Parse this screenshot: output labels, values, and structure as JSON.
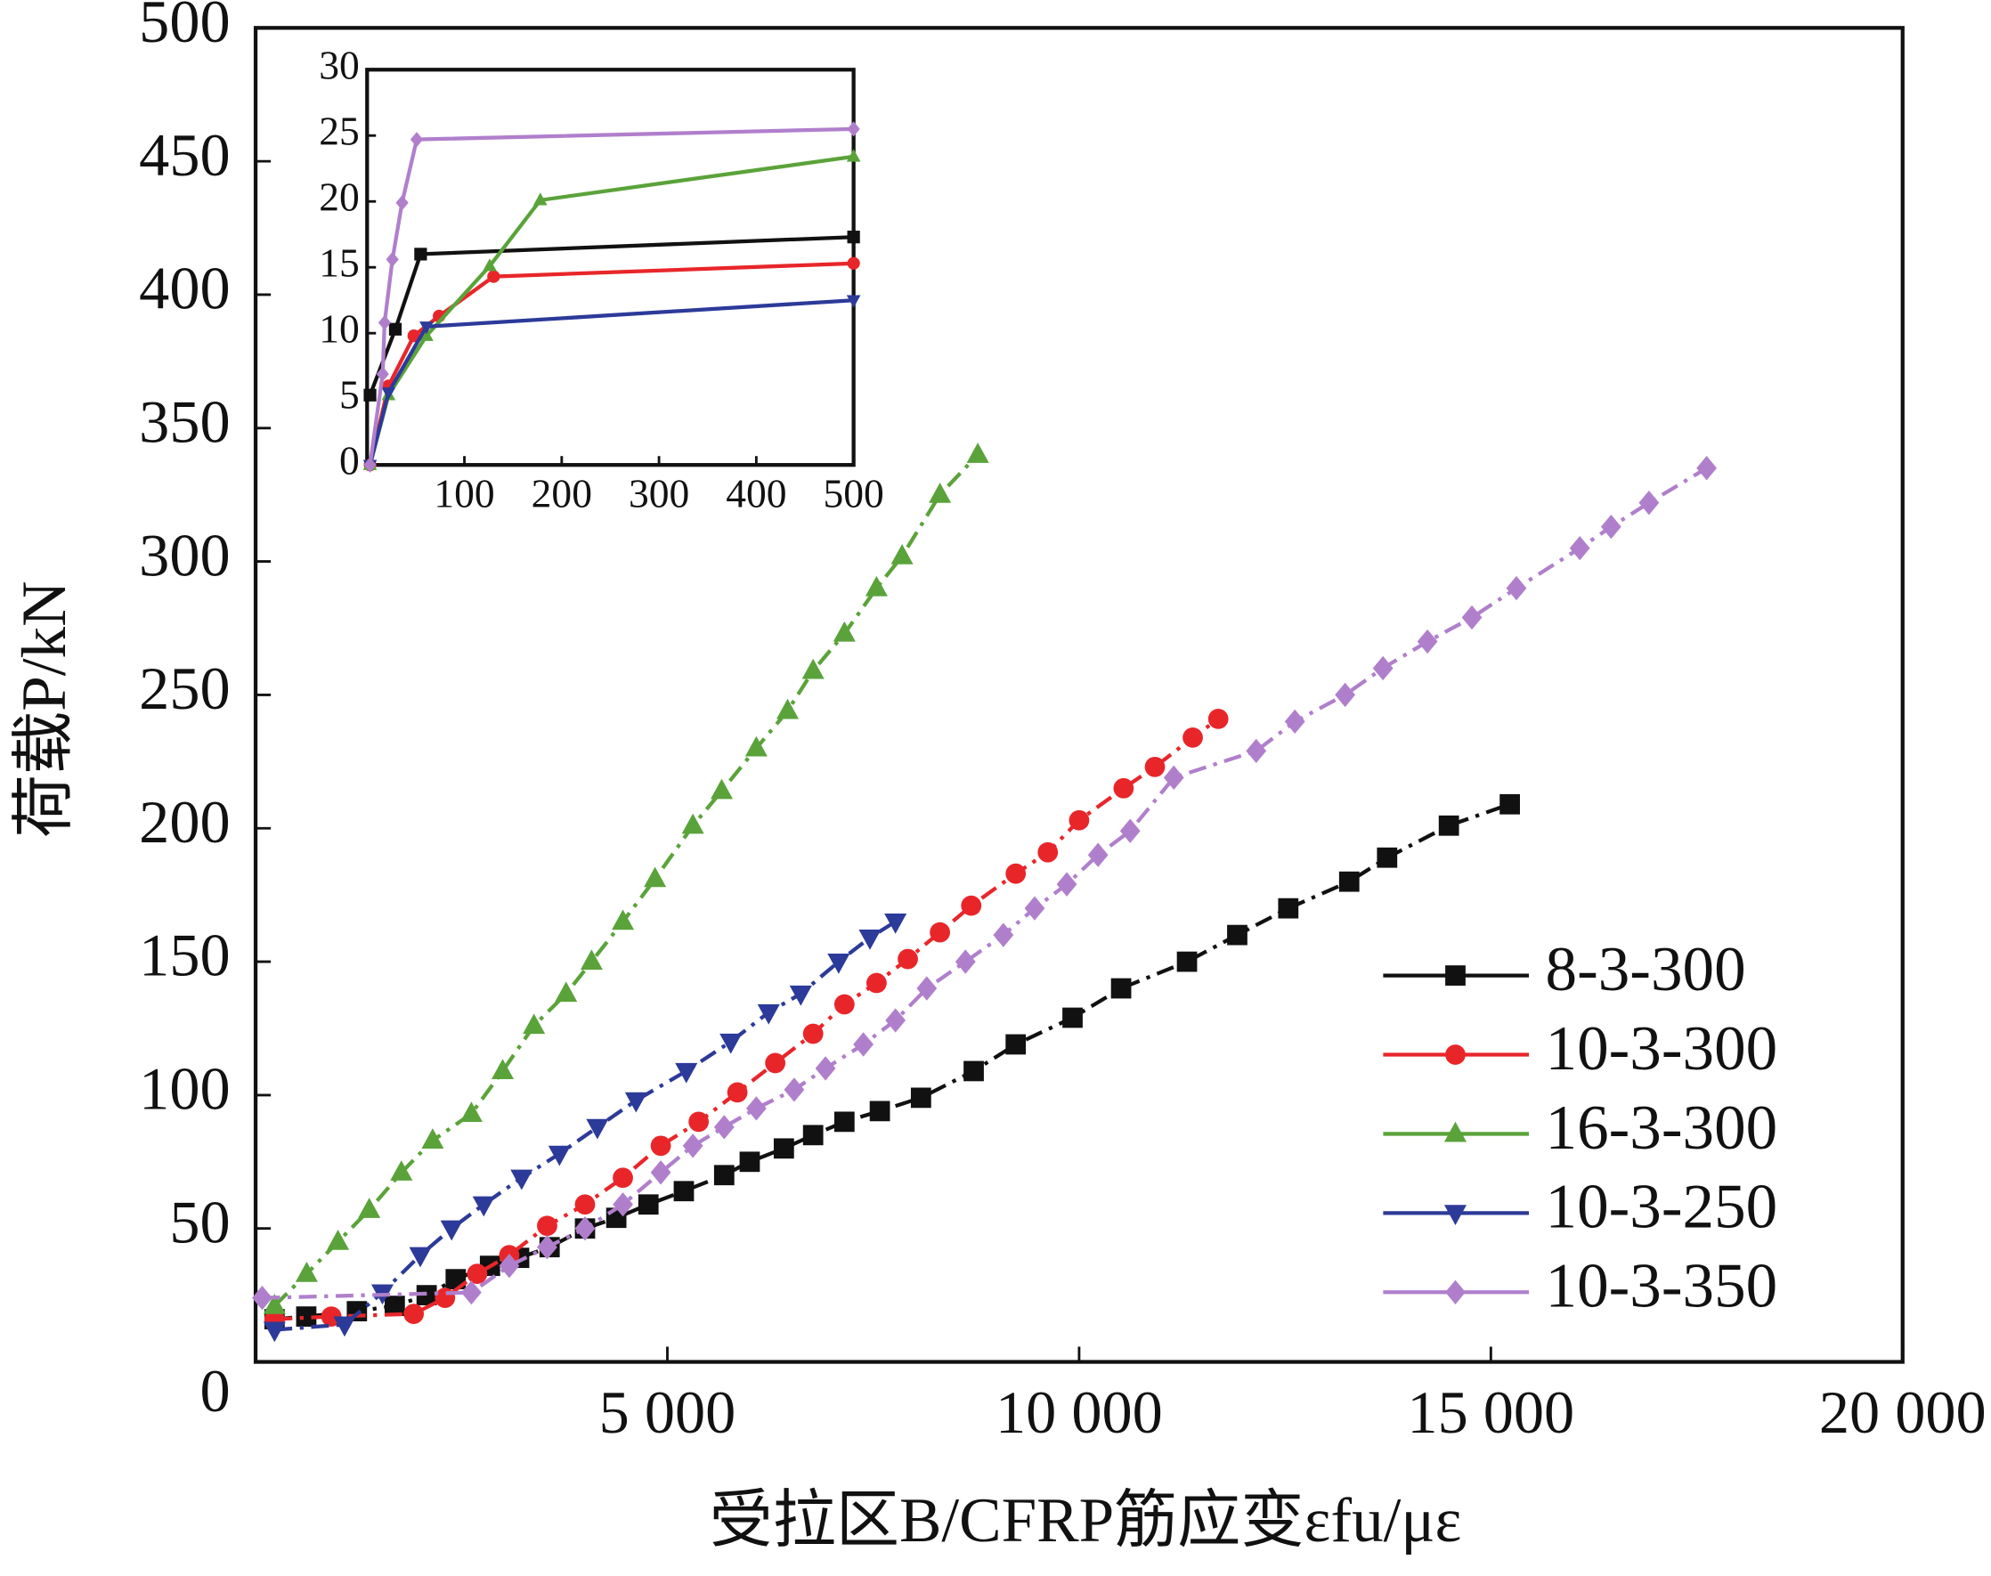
{
  "chart_data": [
    {
      "type": "line",
      "xlabel": "受拉区B/CFRP筋应变εfu/με",
      "ylabel": "荷载P/kN",
      "xlim": [
        0,
        20000
      ],
      "xticks": [
        {
          "value": 5000,
          "label": "5 000"
        },
        {
          "value": 10000,
          "label": "10 000"
        },
        {
          "value": 15000,
          "label": "15 000"
        },
        {
          "value": 20000,
          "label": "20 000"
        }
      ],
      "ylim": [
        0,
        500
      ],
      "yticks": [
        0,
        50,
        100,
        150,
        200,
        250,
        300,
        350,
        400,
        450,
        500
      ],
      "grid": false,
      "legend": "lower right",
      "series": [
        {
          "name": "8-3-300",
          "color": "#111111",
          "marker": "square",
          "x": [
            230,
            615,
            1230,
            1690,
            2077,
            2430,
            2846,
            3200,
            3570,
            4000,
            4380,
            4770,
            5200,
            5690,
            6000,
            6415,
            6770,
            7150,
            7580,
            8080,
            8720,
            9230,
            9920,
            10510,
            11310,
            11920,
            12540,
            13280,
            13740,
            14490,
            15230
          ],
          "values": [
            16,
            17,
            19,
            21,
            25,
            31,
            36,
            39,
            43,
            50,
            54,
            59,
            64,
            70,
            75,
            80,
            85,
            90,
            94,
            99,
            109,
            119,
            129,
            140,
            150,
            160,
            170,
            180,
            189,
            201,
            209
          ]
        },
        {
          "name": "10-3-300",
          "color": "#e8262a",
          "marker": "circle",
          "x": [
            230,
            920,
            1920,
            2300,
            2690,
            3080,
            3540,
            4000,
            4460,
            4920,
            5380,
            5850,
            6310,
            6770,
            7150,
            7540,
            7920,
            8310,
            8690,
            9230,
            9620,
            10000,
            10540,
            10920,
            11380,
            11690
          ],
          "values": [
            16,
            17,
            18,
            24,
            33,
            40,
            51,
            59,
            69,
            81,
            90,
            101,
            112,
            123,
            134,
            142,
            151,
            161,
            171,
            183,
            191,
            203,
            215,
            223,
            234,
            241
          ]
        },
        {
          "name": "16-3-300",
          "color": "#5aa33a",
          "marker": "triangle",
          "x": [
            230,
            620,
            1000,
            1380,
            1770,
            2150,
            2620,
            3000,
            3380,
            3770,
            4080,
            4460,
            4850,
            5310,
            5660,
            6080,
            6460,
            6770,
            7150,
            7540,
            7850,
            8310,
            8770
          ],
          "values": [
            21,
            33,
            45,
            57,
            71,
            83,
            93,
            109,
            126,
            138,
            150,
            165,
            181,
            201,
            214,
            230,
            244,
            259,
            273,
            290,
            302,
            325,
            340
          ]
        },
        {
          "name": "10-3-250",
          "color": "#2c3a99",
          "marker": "triangle-down",
          "x": [
            230,
            1080,
            1540,
            2000,
            2380,
            2770,
            3230,
            3690,
            4150,
            4620,
            5230,
            5770,
            6230,
            6620,
            7080,
            7460,
            7770
          ],
          "values": [
            12,
            14,
            26,
            40,
            50,
            59,
            69,
            78,
            88,
            98,
            109,
            120,
            131,
            138,
            150,
            159,
            165
          ]
        },
        {
          "name": "10-3-350",
          "color": "#b07fcc",
          "marker": "diamond",
          "x": [
            80,
            2620,
            3080,
            3540,
            4000,
            4460,
            4920,
            5310,
            5690,
            6080,
            6540,
            6920,
            7380,
            7770,
            8150,
            8620,
            9080,
            9460,
            9850,
            10230,
            10620,
            11150,
            12150,
            12620,
            13230,
            13690,
            14230,
            14770,
            15310,
            16080,
            16460,
            16920,
            17620
          ],
          "values": [
            24,
            26,
            36,
            43,
            50,
            59,
            71,
            81,
            88,
            95,
            102,
            110,
            119,
            128,
            140,
            150,
            160,
            170,
            179,
            190,
            199,
            219,
            229,
            240,
            250,
            260,
            270,
            279,
            290,
            305,
            313,
            322,
            335
          ]
        }
      ]
    },
    {
      "type": "line",
      "xlim": [
        0,
        500
      ],
      "xticks": [
        100,
        200,
        300,
        400,
        500
      ],
      "ylim": [
        0,
        30
      ],
      "yticks": [
        0,
        5,
        10,
        15,
        20,
        25,
        30
      ],
      "grid": false,
      "series": [
        {
          "color": "#111111",
          "marker": "square",
          "x": [
            3,
            29,
            55,
            500
          ],
          "values": [
            5.3,
            10.3,
            16,
            17.3
          ]
        },
        {
          "color": "#e8262a",
          "marker": "circle",
          "x": [
            3,
            22,
            48,
            74,
            130,
            500
          ],
          "values": [
            0,
            6,
            9.8,
            11.3,
            14.3,
            15.3
          ]
        },
        {
          "color": "#5aa33a",
          "marker": "triangle",
          "x": [
            3,
            22,
            61,
            126,
            178,
            500
          ],
          "values": [
            0,
            5.3,
            9.8,
            15.1,
            20.1,
            23.4
          ]
        },
        {
          "color": "#2c3a99",
          "marker": "triangle-down",
          "x": [
            3,
            22,
            61,
            500
          ],
          "values": [
            0,
            5.5,
            10.5,
            12.5
          ]
        },
        {
          "color": "#b07fcc",
          "marker": "diamond",
          "x": [
            3,
            16,
            18,
            26,
            36,
            51,
            500
          ],
          "values": [
            0,
            6.9,
            10.8,
            15.6,
            19.9,
            24.7,
            25.5
          ]
        }
      ]
    }
  ]
}
